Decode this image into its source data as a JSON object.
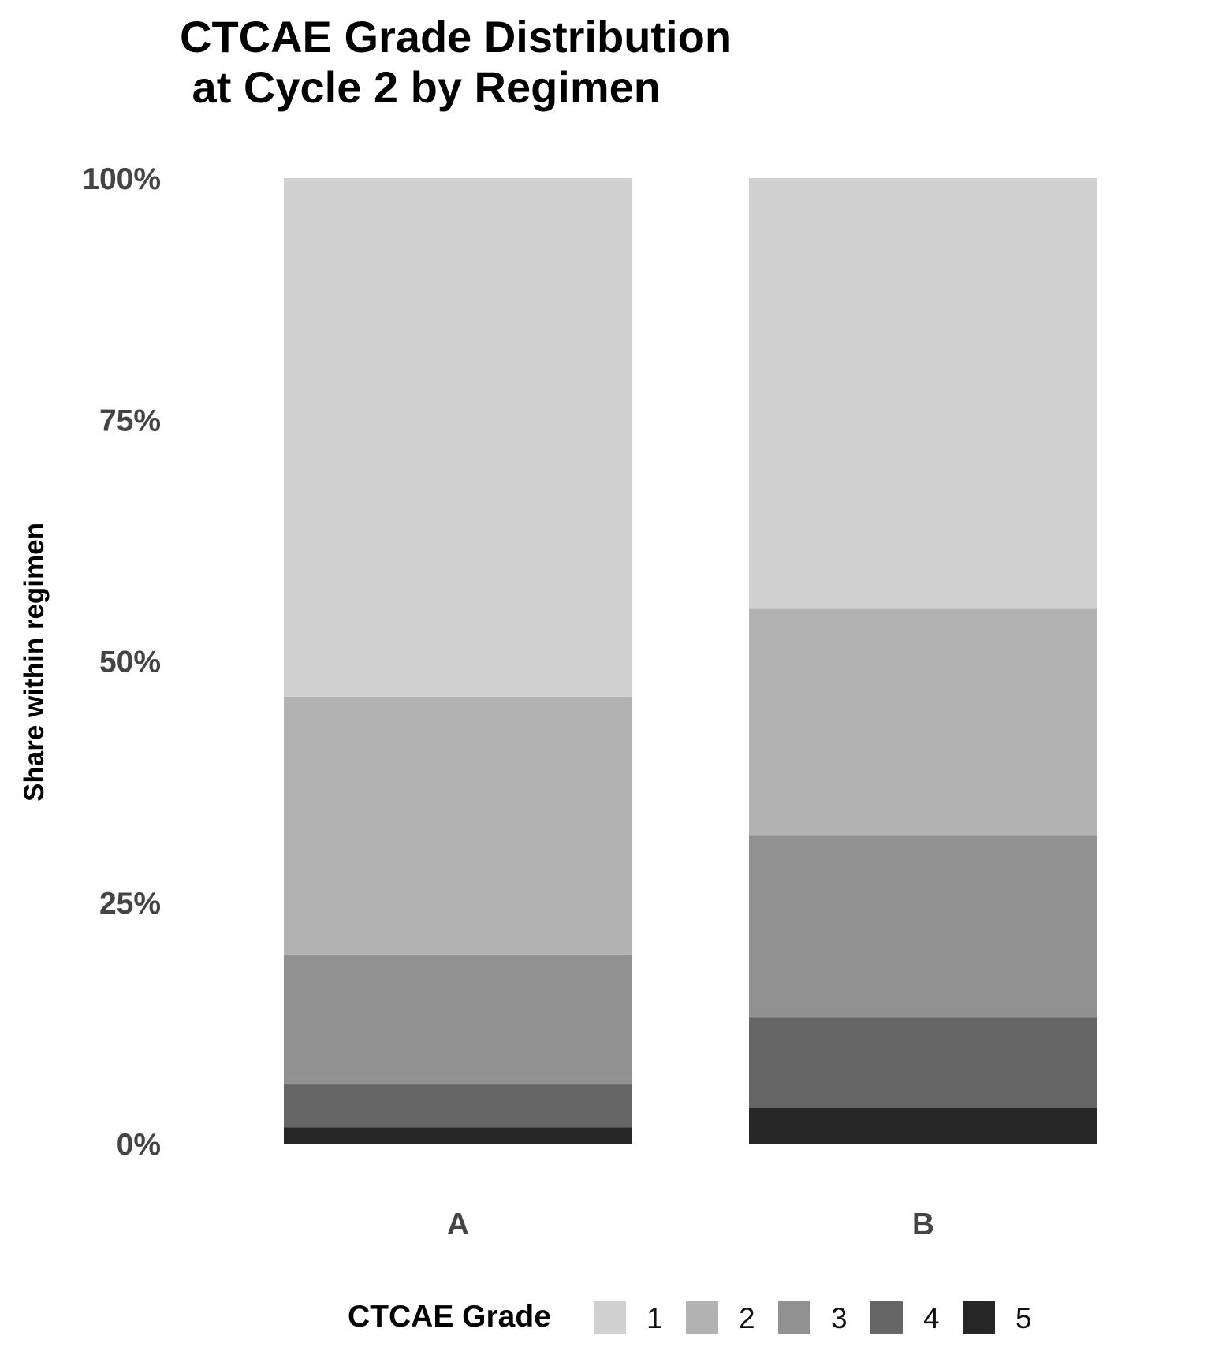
{
  "chart_data": {
    "type": "bar",
    "stacked": true,
    "normalized": true,
    "title_lines": [
      "CTCAE Grade Distribution",
      " at Cycle 2 by Regimen"
    ],
    "xlabel": "",
    "ylabel": "Share within regimen",
    "ylim": [
      0,
      1
    ],
    "y_ticks": [
      0,
      0.25,
      0.5,
      0.75,
      1.0
    ],
    "y_tick_labels": [
      "0%",
      "25%",
      "50%",
      "75%",
      "100%"
    ],
    "categories": [
      "A",
      "B"
    ],
    "legend_title": "CTCAE Grade",
    "legend_position": "bottom",
    "grid": false,
    "series": [
      {
        "name": "1",
        "color": "#d0d0d0",
        "values": [
          0.537,
          0.446
        ]
      },
      {
        "name": "2",
        "color": "#b2b2b2",
        "values": [
          0.267,
          0.235
        ]
      },
      {
        "name": "3",
        "color": "#919191",
        "values": [
          0.134,
          0.188
        ]
      },
      {
        "name": "4",
        "color": "#666666",
        "values": [
          0.045,
          0.094
        ]
      },
      {
        "name": "5",
        "color": "#262626",
        "values": [
          0.017,
          0.037
        ]
      }
    ]
  }
}
